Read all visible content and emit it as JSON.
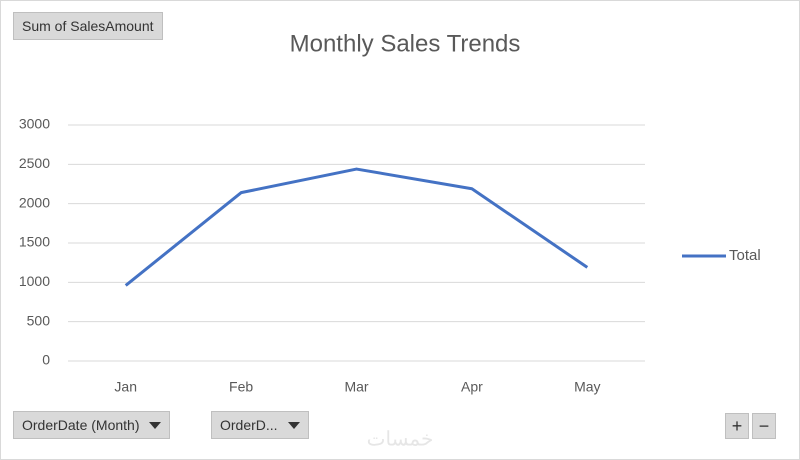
{
  "chart_data": {
    "type": "line",
    "title": "Monthly Sales Trends",
    "categories": [
      "Jan",
      "Feb",
      "Mar",
      "Apr",
      "May"
    ],
    "series": [
      {
        "name": "Total",
        "color": "#4472c4",
        "values": [
          960,
          2140,
          2440,
          2190,
          1190
        ]
      }
    ],
    "ylim": [
      0,
      3000
    ],
    "yticks": [
      0,
      500,
      1000,
      1500,
      2000,
      2500,
      3000
    ],
    "grid": true,
    "legend": "right"
  },
  "pivot": {
    "value_field": "Sum of SalesAmount",
    "axis_fields": [
      "OrderDate (Month)",
      "OrderD..."
    ],
    "zoom_buttons": [
      "+",
      "−"
    ]
  },
  "watermark": "خمسات"
}
